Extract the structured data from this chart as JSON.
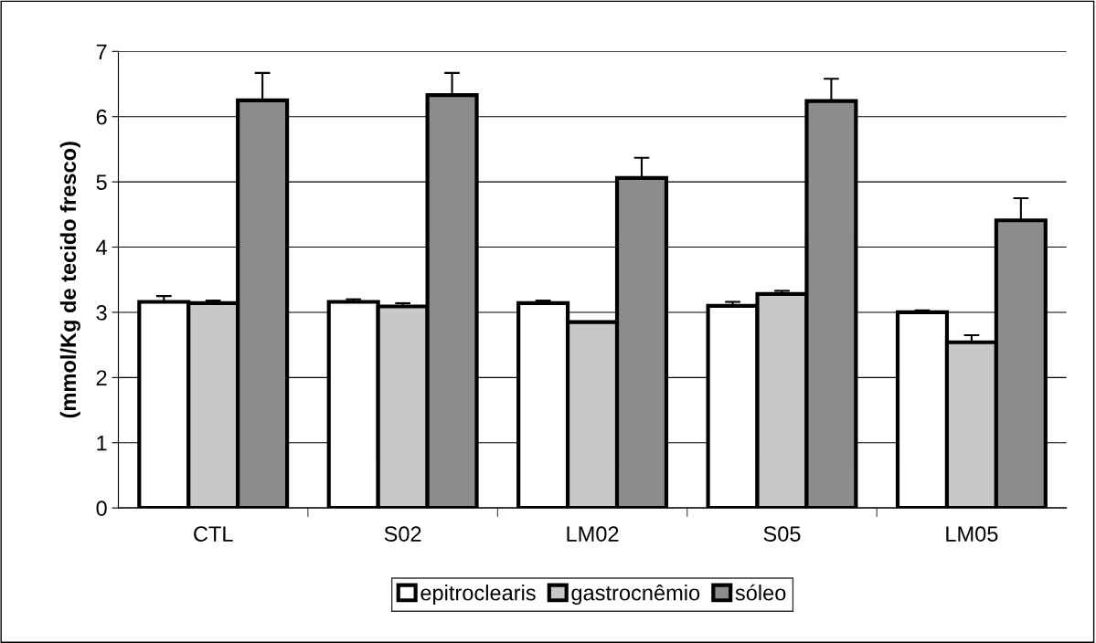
{
  "chart_data": {
    "type": "bar",
    "ylabel": "(mmol/Kg de tecido fresco)",
    "categories": [
      "CTL",
      "S02",
      "LM02",
      "S05",
      "LM05"
    ],
    "series": [
      {
        "name": "epitroclearis",
        "color": "#ffffff",
        "values": [
          3.16,
          3.16,
          3.14,
          3.1,
          3.0
        ],
        "errors": [
          0.09,
          0.04,
          0.04,
          0.06,
          0.03
        ]
      },
      {
        "name": "gastrocnêmio",
        "color": "#c8c8c8",
        "values": [
          3.14,
          3.09,
          2.85,
          3.28,
          2.54
        ],
        "errors": [
          0.04,
          0.05,
          null,
          0.05,
          0.11
        ]
      },
      {
        "name": "sóleo",
        "color": "#8c8c8c",
        "values": [
          6.25,
          6.33,
          5.06,
          6.24,
          4.41
        ],
        "errors": [
          0.42,
          0.34,
          0.31,
          0.34,
          0.34
        ]
      }
    ],
    "ylim": [
      0,
      7
    ],
    "yticks": [
      0,
      1,
      2,
      3,
      4,
      5,
      6,
      7
    ],
    "grid": "y",
    "legend": "bottom"
  }
}
